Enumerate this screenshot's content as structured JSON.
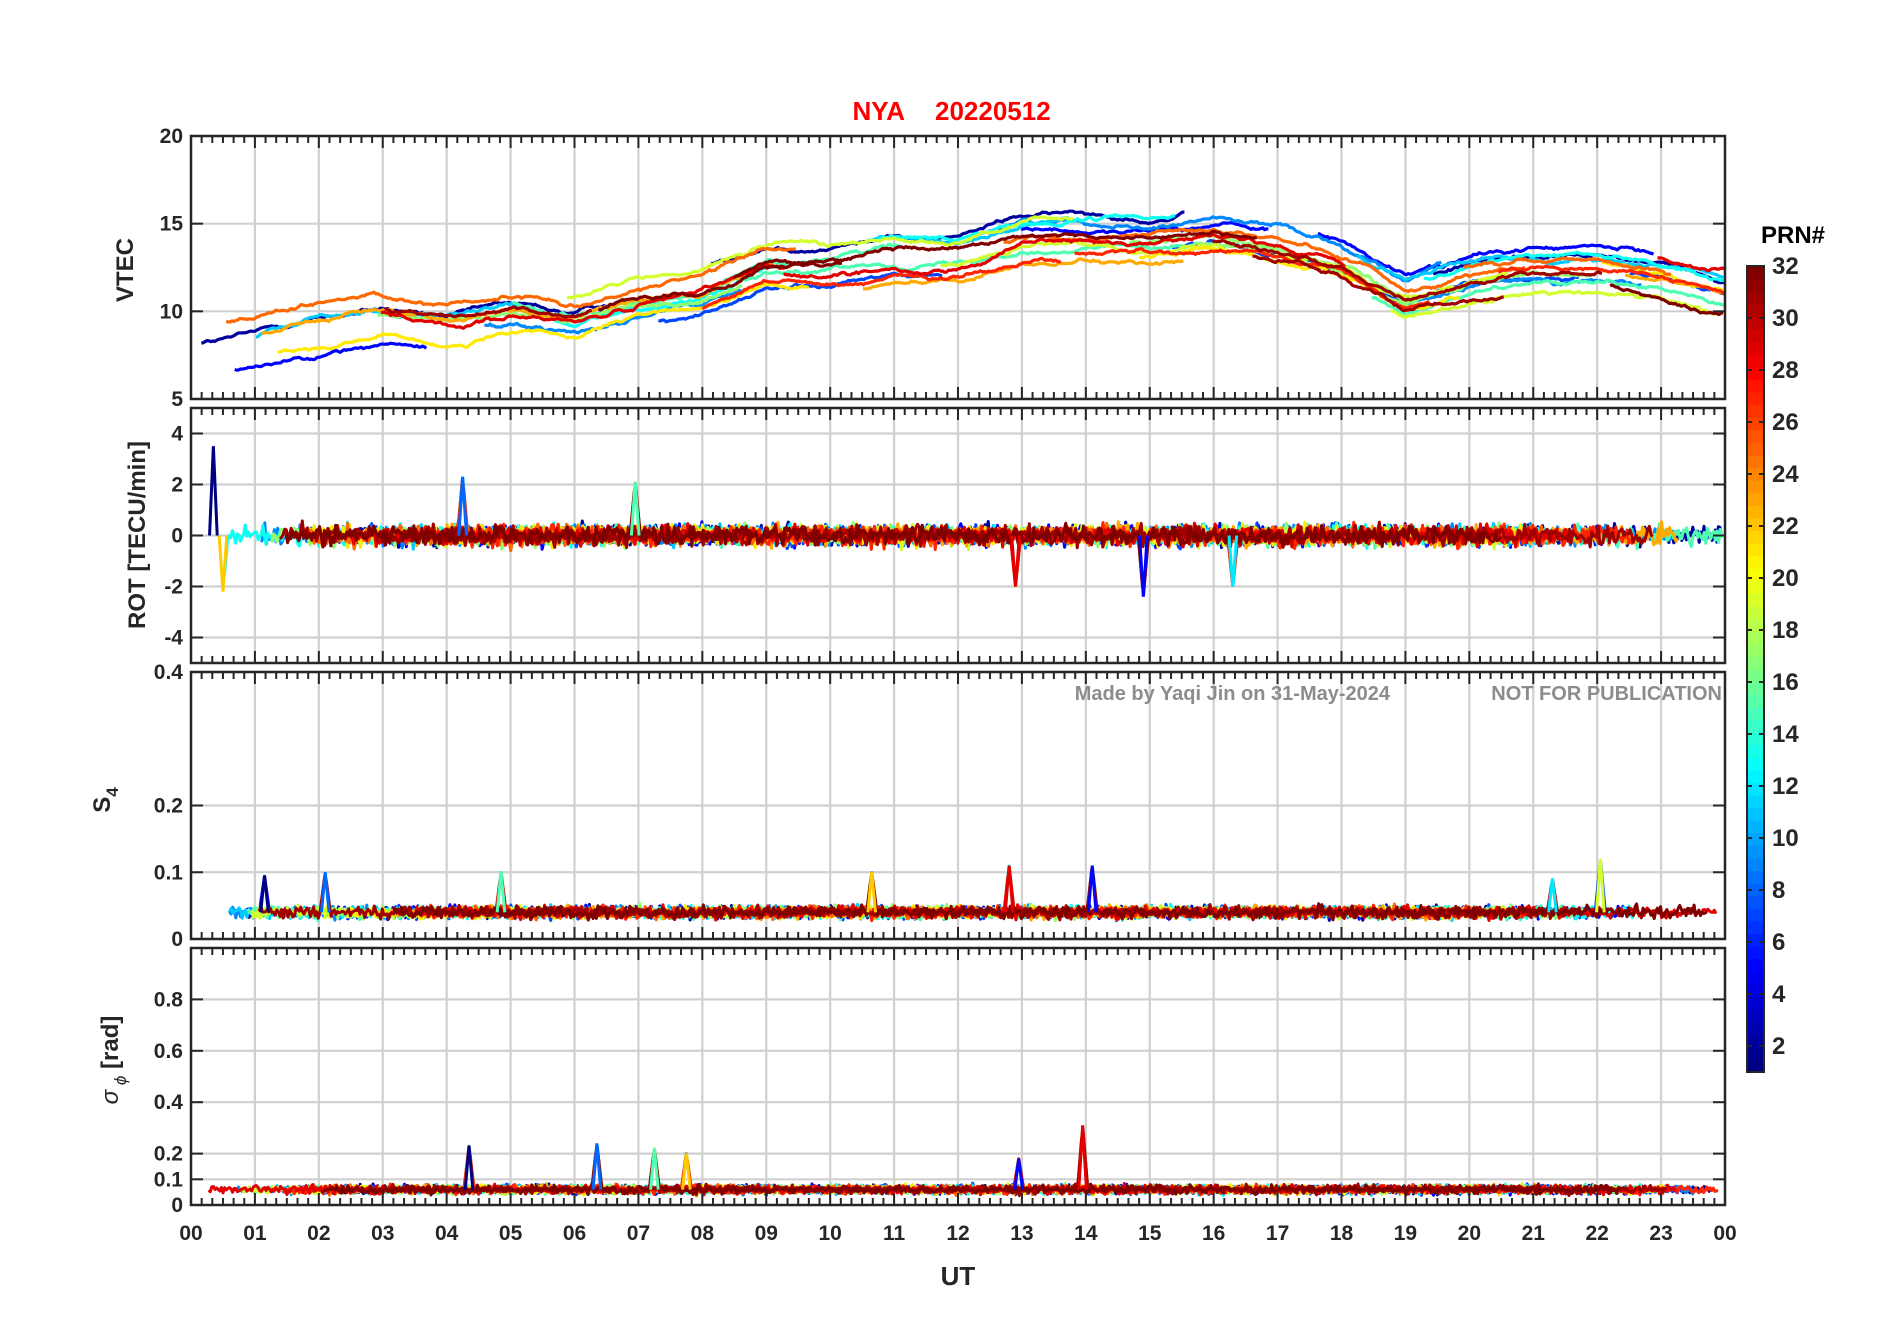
{
  "figure": {
    "title": {
      "station": "NYA",
      "date": "20220512"
    },
    "watermark": {
      "made_by": "Made by Yaqi Jin on 31-May-2024",
      "notice": "NOT FOR PUBLICATION"
    },
    "xlabel": "UT"
  },
  "colorbar": {
    "title": "PRN#",
    "ticks": [
      "2",
      "4",
      "6",
      "8",
      "10",
      "12",
      "14",
      "16",
      "18",
      "20",
      "22",
      "24",
      "26",
      "28",
      "30",
      "32"
    ],
    "range": [
      1,
      32
    ],
    "colormap": "jet"
  },
  "chart_data": [
    {
      "type": "line",
      "name": "vtec-panel",
      "ylabel": "VTEC",
      "ylim": [
        5,
        20
      ],
      "yticks": [
        "5",
        "10",
        "15",
        "20"
      ],
      "xlim": [
        0,
        24
      ],
      "xticks": [
        "00",
        "01",
        "02",
        "03",
        "04",
        "05",
        "06",
        "07",
        "08",
        "09",
        "10",
        "11",
        "12",
        "13",
        "14",
        "15",
        "16",
        "17",
        "18",
        "19",
        "20",
        "21",
        "22",
        "23",
        "00"
      ],
      "grid": true,
      "envelope": {
        "x": [
          0,
          1,
          2,
          3,
          4,
          5,
          6,
          7,
          8,
          9,
          10,
          11,
          12,
          13,
          14,
          15,
          16,
          17,
          18,
          19,
          20,
          21,
          22,
          23,
          24
        ],
        "y": [
          8,
          8.5,
          9.5,
          10,
          9.5,
          10,
          9.5,
          10.5,
          11,
          12.5,
          12.5,
          13,
          13,
          14,
          14,
          14,
          14.5,
          14,
          13,
          11,
          12,
          12.5,
          12.5,
          12,
          11
        ]
      },
      "series_color_by": "PRN"
    },
    {
      "type": "line",
      "name": "rot-panel",
      "ylabel": "ROT [TECU/min]",
      "ylim": [
        -5,
        5
      ],
      "yticks": [
        "-4",
        "-2",
        "0",
        "2",
        "4"
      ],
      "xlim": [
        0,
        24
      ],
      "grid": true,
      "peaks": [
        {
          "x": 0.35,
          "y": 3.5
        },
        {
          "x": 4.25,
          "y": 2.3
        },
        {
          "x": 6.95,
          "y": 2.1
        },
        {
          "x": 0.5,
          "y": -2.2
        },
        {
          "x": 12.9,
          "y": -2.0
        },
        {
          "x": 14.9,
          "y": -2.4
        },
        {
          "x": 16.3,
          "y": -2.0
        }
      ],
      "series_color_by": "PRN"
    },
    {
      "type": "line",
      "name": "s4-panel",
      "ylabel": "S4",
      "ylim": [
        0,
        0.4
      ],
      "yticks": [
        "0",
        "0.1",
        "0.2",
        "0.4"
      ],
      "xlim": [
        0,
        24
      ],
      "grid": true,
      "baseline": 0.04,
      "peaks": [
        {
          "x": 1.15,
          "y": 0.095
        },
        {
          "x": 2.1,
          "y": 0.1
        },
        {
          "x": 4.85,
          "y": 0.1
        },
        {
          "x": 10.65,
          "y": 0.1
        },
        {
          "x": 12.8,
          "y": 0.11
        },
        {
          "x": 14.1,
          "y": 0.11
        },
        {
          "x": 21.3,
          "y": 0.09
        },
        {
          "x": 22.05,
          "y": 0.12
        }
      ],
      "series_color_by": "PRN"
    },
    {
      "type": "line",
      "name": "sigma-phi-panel",
      "ylabel": "σ ϕ [rad]",
      "ylim": [
        0,
        1
      ],
      "yticks": [
        "0",
        "0.1",
        "0.2",
        "0.4",
        "0.6",
        "0.8"
      ],
      "xlim": [
        0,
        24
      ],
      "grid": true,
      "baseline": 0.06,
      "peaks": [
        {
          "x": 4.35,
          "y": 0.23
        },
        {
          "x": 6.35,
          "y": 0.24
        },
        {
          "x": 7.25,
          "y": 0.22
        },
        {
          "x": 7.75,
          "y": 0.2
        },
        {
          "x": 13.95,
          "y": 0.31
        },
        {
          "x": 12.95,
          "y": 0.18
        }
      ],
      "series_color_by": "PRN"
    }
  ]
}
